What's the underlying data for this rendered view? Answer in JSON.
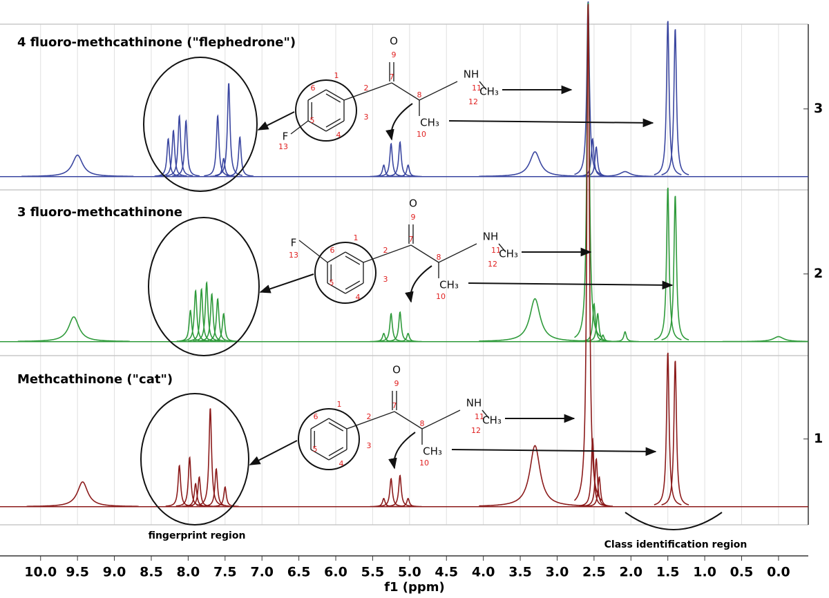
{
  "chart_data": {
    "type": "nmr",
    "xlabel": "f1 (ppm)",
    "xlim": [
      10.55,
      -0.45
    ],
    "ylim": [
      0.48,
      3.66
    ],
    "xticks": [
      {
        "value": 10,
        "label": "10.0"
      },
      9.5,
      {
        "value": 9,
        "label": "9.0"
      },
      8.5,
      {
        "value": 8,
        "label": "8.0"
      },
      7.5,
      {
        "value": 7,
        "label": "7.0"
      },
      6.5,
      {
        "value": 6,
        "label": "6.0"
      },
      5.5,
      {
        "value": 5,
        "label": "5.0"
      },
      4.5,
      {
        "value": 4,
        "label": "4.0"
      },
      3.5,
      {
        "value": 3,
        "label": "3.0"
      },
      2.5,
      {
        "value": 2,
        "label": "2.0"
      },
      1.5,
      {
        "value": 1,
        "label": "1.0"
      },
      0.5,
      {
        "value": 0,
        "label": "0.0"
      }
    ],
    "yticks": [
      1,
      2,
      3
    ],
    "grid": true,
    "series": [
      {
        "name": "4 fluoro-methcathinone (\"flephedrone\")",
        "color": "#3a46a0",
        "baseline": 2.59,
        "x": [
          9.5,
          8.27,
          8.2,
          8.12,
          8.03,
          7.6,
          7.52,
          7.45,
          7.3,
          5.35,
          5.25,
          5.13,
          5.02,
          3.3,
          2.58,
          2.52,
          2.47,
          2.08,
          1.5,
          1.4
        ],
        "values": [
          2.72,
          2.82,
          2.87,
          2.96,
          2.93,
          2.96,
          2.7,
          3.16,
          2.83,
          2.66,
          2.79,
          2.8,
          2.66,
          2.74,
          3.66,
          2.82,
          2.77,
          2.62,
          3.54,
          3.49
        ]
      },
      {
        "name": "3 fluoro-methcathinone",
        "color": "#2e9a3a",
        "baseline": 1.59,
        "x": [
          9.55,
          7.97,
          7.9,
          7.82,
          7.75,
          7.68,
          7.6,
          7.52,
          5.35,
          5.25,
          5.13,
          5.02,
          3.3,
          2.58,
          2.5,
          2.45,
          2.38,
          2.08,
          1.5,
          1.4,
          0.0
        ],
        "values": [
          1.74,
          1.78,
          1.9,
          1.91,
          1.95,
          1.88,
          1.85,
          1.76,
          1.64,
          1.76,
          1.77,
          1.64,
          1.85,
          3.66,
          1.82,
          1.76,
          1.63,
          1.65,
          2.53,
          2.48,
          1.62
        ]
      },
      {
        "name": "Methcathinone (\"cat\")",
        "color": "#8b1a1a",
        "baseline": 0.59,
        "x": [
          9.43,
          8.12,
          7.98,
          7.9,
          7.85,
          7.7,
          7.62,
          7.5,
          5.35,
          5.25,
          5.13,
          5.02,
          3.3,
          2.58,
          2.52,
          2.47,
          2.43,
          1.5,
          1.4
        ],
        "values": [
          0.74,
          0.84,
          0.89,
          0.73,
          0.77,
          1.19,
          0.82,
          0.71,
          0.64,
          0.76,
          0.78,
          0.64,
          0.96,
          3.66,
          1.0,
          0.88,
          0.77,
          1.53,
          1.48
        ]
      }
    ],
    "structures": [
      [
        "O",
        "9",
        "7",
        "8",
        "NH",
        "11",
        "CH₃",
        "12",
        "CH₃",
        "10",
        "1",
        "2",
        "3",
        "4",
        "5",
        "6",
        "F",
        "13"
      ],
      [
        "O",
        "9",
        "7",
        "8",
        "NH",
        "11",
        "CH₃",
        "12",
        "CH₃",
        "10",
        "1",
        "2",
        "3",
        "4",
        "5",
        "6",
        "F",
        "13"
      ],
      [
        "O",
        "9",
        "7",
        "8",
        "NH",
        "11",
        "CH₃",
        "12",
        "CH₃",
        "10",
        "1",
        "2",
        "3",
        "4",
        "5",
        "6"
      ]
    ],
    "annotations": [
      "fingerprint region",
      "Class identification region"
    ]
  }
}
